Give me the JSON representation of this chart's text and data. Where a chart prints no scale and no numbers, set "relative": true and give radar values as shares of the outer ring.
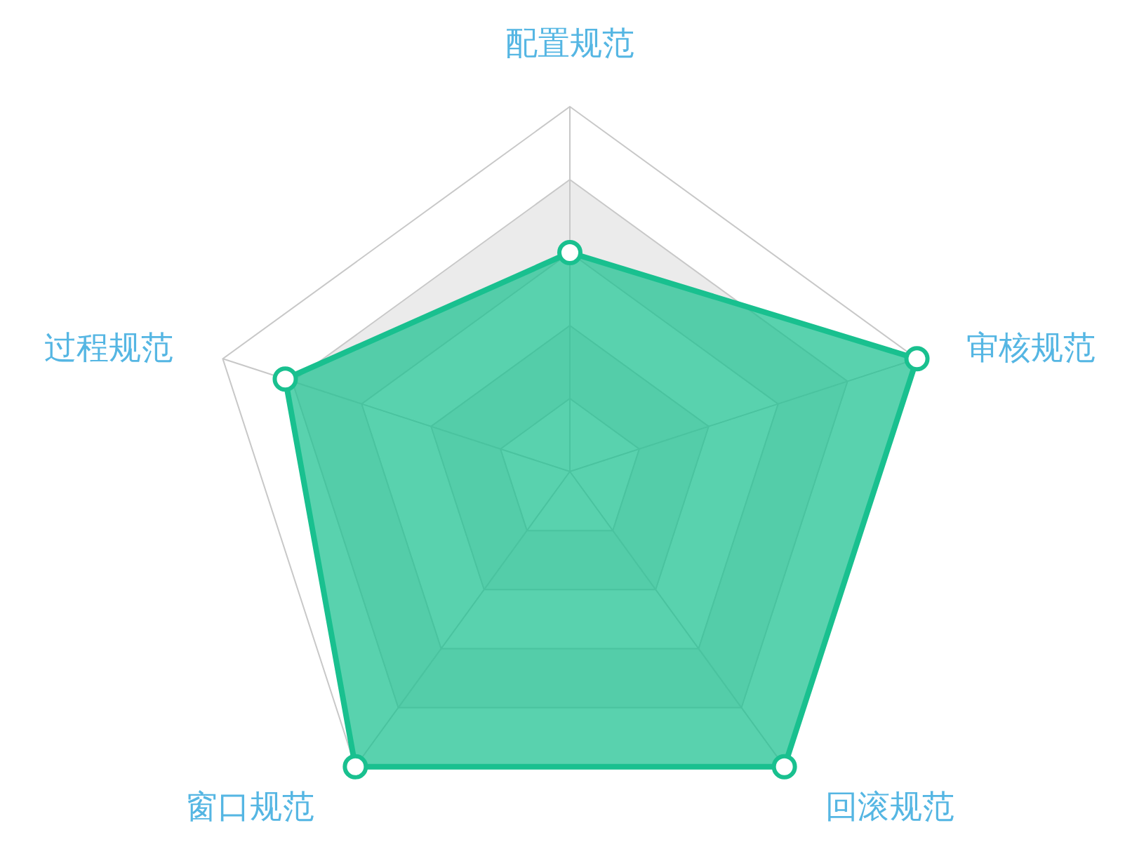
{
  "chart_data": {
    "type": "radar",
    "relative": true,
    "grid": true,
    "marker": "circle",
    "categories": [
      "配置规范",
      "审核规范",
      "回滚规范",
      "窗口规范",
      "过程规范"
    ],
    "series": [
      {
        "color": "#19c08f",
        "values": [
          0.6,
          1,
          1,
          1,
          0.82
        ]
      }
    ]
  }
}
